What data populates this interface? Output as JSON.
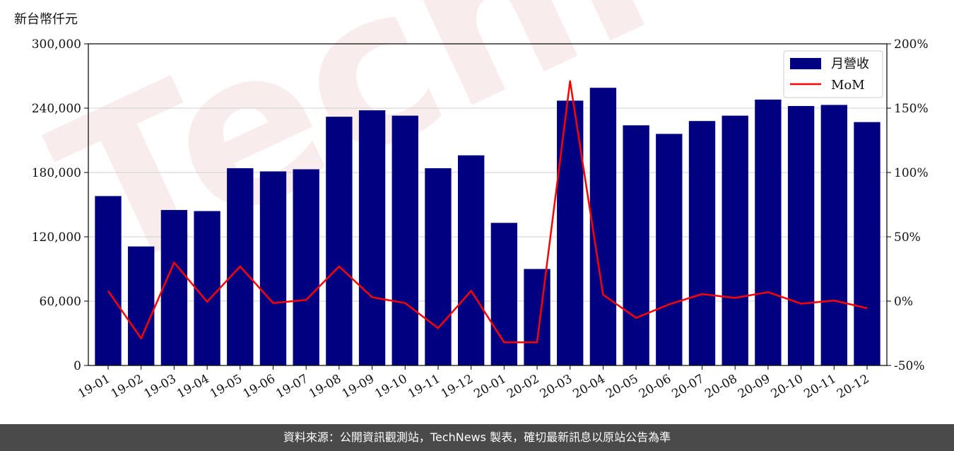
{
  "chart_data": {
    "type": "bar",
    "ylabel": "新台幣仟元",
    "categories": [
      "19-01",
      "19-02",
      "19-03",
      "19-04",
      "19-05",
      "19-06",
      "19-07",
      "19-08",
      "19-09",
      "19-10",
      "19-11",
      "19-12",
      "20-01",
      "20-02",
      "20-03",
      "20-04",
      "20-05",
      "20-06",
      "20-07",
      "20-08",
      "20-09",
      "20-10",
      "20-11",
      "20-12"
    ],
    "series": [
      {
        "name": "月營收",
        "type": "bar",
        "axis": "left",
        "color": "#000080",
        "values": [
          158000,
          111000,
          145000,
          144000,
          184000,
          181000,
          183000,
          232000,
          238000,
          233000,
          184000,
          196000,
          133000,
          90000,
          247000,
          259000,
          224000,
          216000,
          228000,
          233000,
          248000,
          242000,
          243000,
          227000
        ]
      },
      {
        "name": "MoM",
        "type": "line",
        "axis": "right",
        "color": "#ff0000",
        "values": [
          8,
          -29,
          30,
          -0.5,
          27,
          -1.5,
          1,
          27,
          3,
          -1.5,
          -21,
          8,
          -32,
          -32,
          171,
          5,
          -13,
          -2.5,
          5.5,
          2.5,
          7,
          -2,
          0.5,
          -5.5
        ]
      }
    ],
    "ylim": [
      0,
      300000
    ],
    "yticks": [
      "0",
      "60,000",
      "120,000",
      "180,000",
      "240,000",
      "300,000"
    ],
    "y2lim": [
      -50,
      200
    ],
    "y2ticks": [
      "-50%",
      "0%",
      "50%",
      "100%",
      "150%",
      "200%"
    ],
    "grid": "horizontal",
    "legend": "top-right",
    "watermark": "TechNews"
  },
  "footer": {
    "source_text": "資料來源：公開資訊觀測站，TechNews 製表，確切最新訊息以原站公告為準"
  }
}
